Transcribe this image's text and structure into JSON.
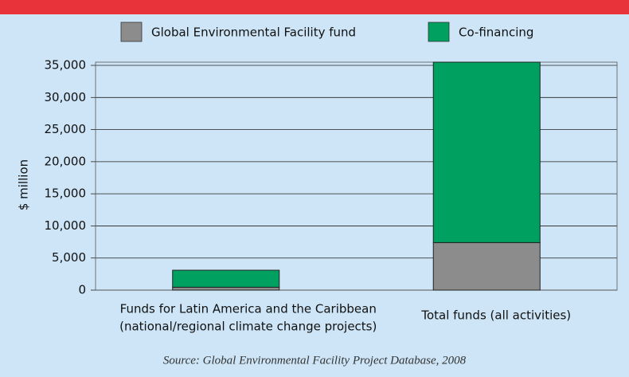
{
  "chart_data": {
    "type": "stacked_bar",
    "source": "Source: Global Environmental Facility Project Database, 2008",
    "y_label": "$ million",
    "categories": [
      [
        "Funds for Latin America and the Caribbean",
        "(national/regional climate change projects)"
      ],
      [
        "Total funds (all activities)"
      ]
    ],
    "series": [
      {
        "name": "Global Environmental Facility fund",
        "color": "#8c8c8c",
        "values": [
          450,
          7400
        ]
      },
      {
        "name": "Co-financing",
        "color": "#00a060",
        "values": [
          2650,
          28100
        ]
      }
    ],
    "ylim": [
      0,
      35500
    ],
    "yticks": [
      0,
      {
        "value": 5000,
        "label": "5,000"
      },
      {
        "value": 10000,
        "label": "10,000"
      },
      {
        "value": 15000,
        "label": "15,000"
      },
      {
        "value": 20000,
        "label": "20,000"
      },
      {
        "value": 25000,
        "label": "25,000"
      },
      {
        "value": 30000,
        "label": "30,000"
      },
      {
        "value": 35000,
        "label": "35,000"
      }
    ],
    "grid": true
  }
}
